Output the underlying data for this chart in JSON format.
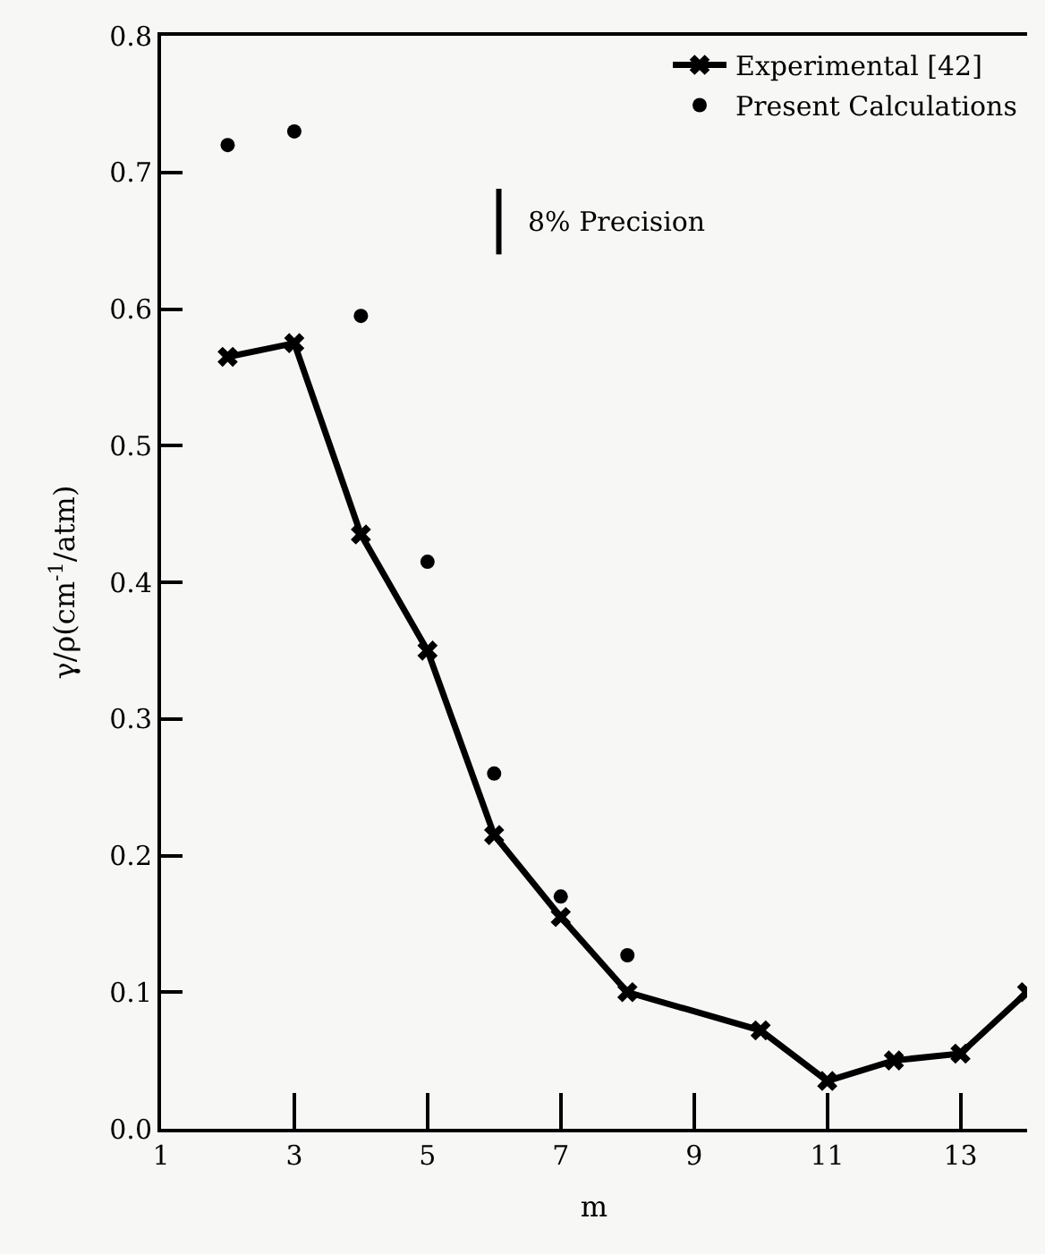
{
  "chart_data": {
    "type": "line",
    "xlabel": "m",
    "ylabel": "γ/ρ(cm$^{-1}$/atm)",
    "xlim": [
      1,
      14
    ],
    "xticks": [
      1,
      3,
      5,
      7,
      9,
      11,
      13
    ],
    "ylim": [
      0,
      0.8
    ],
    "yticks": [
      {
        "value": 0,
        "label": "0.0"
      },
      0.1,
      0.2,
      0.3,
      0.4,
      0.5,
      0.6,
      0.7,
      0.8
    ],
    "grid": false,
    "legend": "top right",
    "series": [
      {
        "name": "Experimental [42]",
        "marker": "cross",
        "line_style": "solid",
        "color": "#000000",
        "x": [
          2,
          3,
          4,
          5,
          6,
          7,
          8,
          10,
          11,
          12,
          13,
          14
        ],
        "values": [
          0.565,
          0.575,
          0.435,
          0.35,
          0.215,
          0.155,
          0.1,
          0.072,
          0.035,
          0.05,
          0.055,
          0.1
        ]
      },
      {
        "name": "Present Calculations",
        "type": "scatter",
        "marker": "circle",
        "color": "#000000",
        "x": [
          2,
          3,
          4,
          5,
          6,
          7,
          8
        ],
        "values": [
          0.72,
          0.73,
          0.595,
          0.415,
          0.26,
          0.17,
          0.127
        ]
      }
    ],
    "annotations": [
      "8% Precision"
    ]
  }
}
